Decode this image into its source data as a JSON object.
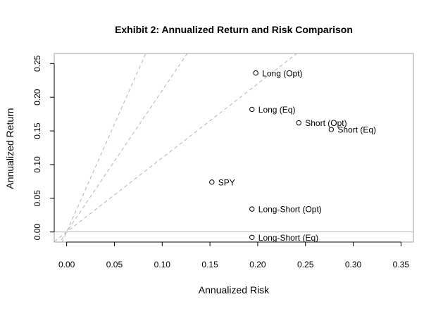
{
  "chart_data": {
    "type": "scatter",
    "title": "Exhibit 2: Annualized Return and Risk Comparison",
    "xlabel": "Annualized Risk",
    "ylabel": "Annualized Return",
    "xlim": [
      -0.013,
      0.363
    ],
    "ylim": [
      -0.015,
      0.265
    ],
    "xticks": [
      "0.00",
      "0.05",
      "0.10",
      "0.15",
      "0.20",
      "0.25",
      "0.30",
      "0.35"
    ],
    "yticks": [
      "0.00",
      "0.05",
      "0.10",
      "0.15",
      "0.20",
      "0.25"
    ],
    "grid": false,
    "points": [
      {
        "label": "Long (Opt)",
        "x": 0.198,
        "y": 0.236
      },
      {
        "label": "Long (Eq)",
        "x": 0.194,
        "y": 0.182
      },
      {
        "label": "Short (Opt)",
        "x": 0.243,
        "y": 0.162
      },
      {
        "label": "Short (Eq)",
        "x": 0.277,
        "y": 0.152
      },
      {
        "label": "SPY",
        "x": 0.152,
        "y": 0.074
      },
      {
        "label": "Long-Short (Opt)",
        "x": 0.194,
        "y": 0.034
      },
      {
        "label": "Long-Short (Eq)",
        "x": 0.194,
        "y": -0.008
      }
    ],
    "reference_lines": [
      {
        "style": "dashed",
        "slope": 3.2
      },
      {
        "style": "dashed",
        "slope": 2.1
      },
      {
        "style": "dashed",
        "slope": 1.1
      },
      {
        "style": "solid",
        "y": 0
      }
    ],
    "colors": {
      "points": "#000000",
      "reference": "#b4b4b4",
      "frame": "#a0a0a0"
    }
  }
}
